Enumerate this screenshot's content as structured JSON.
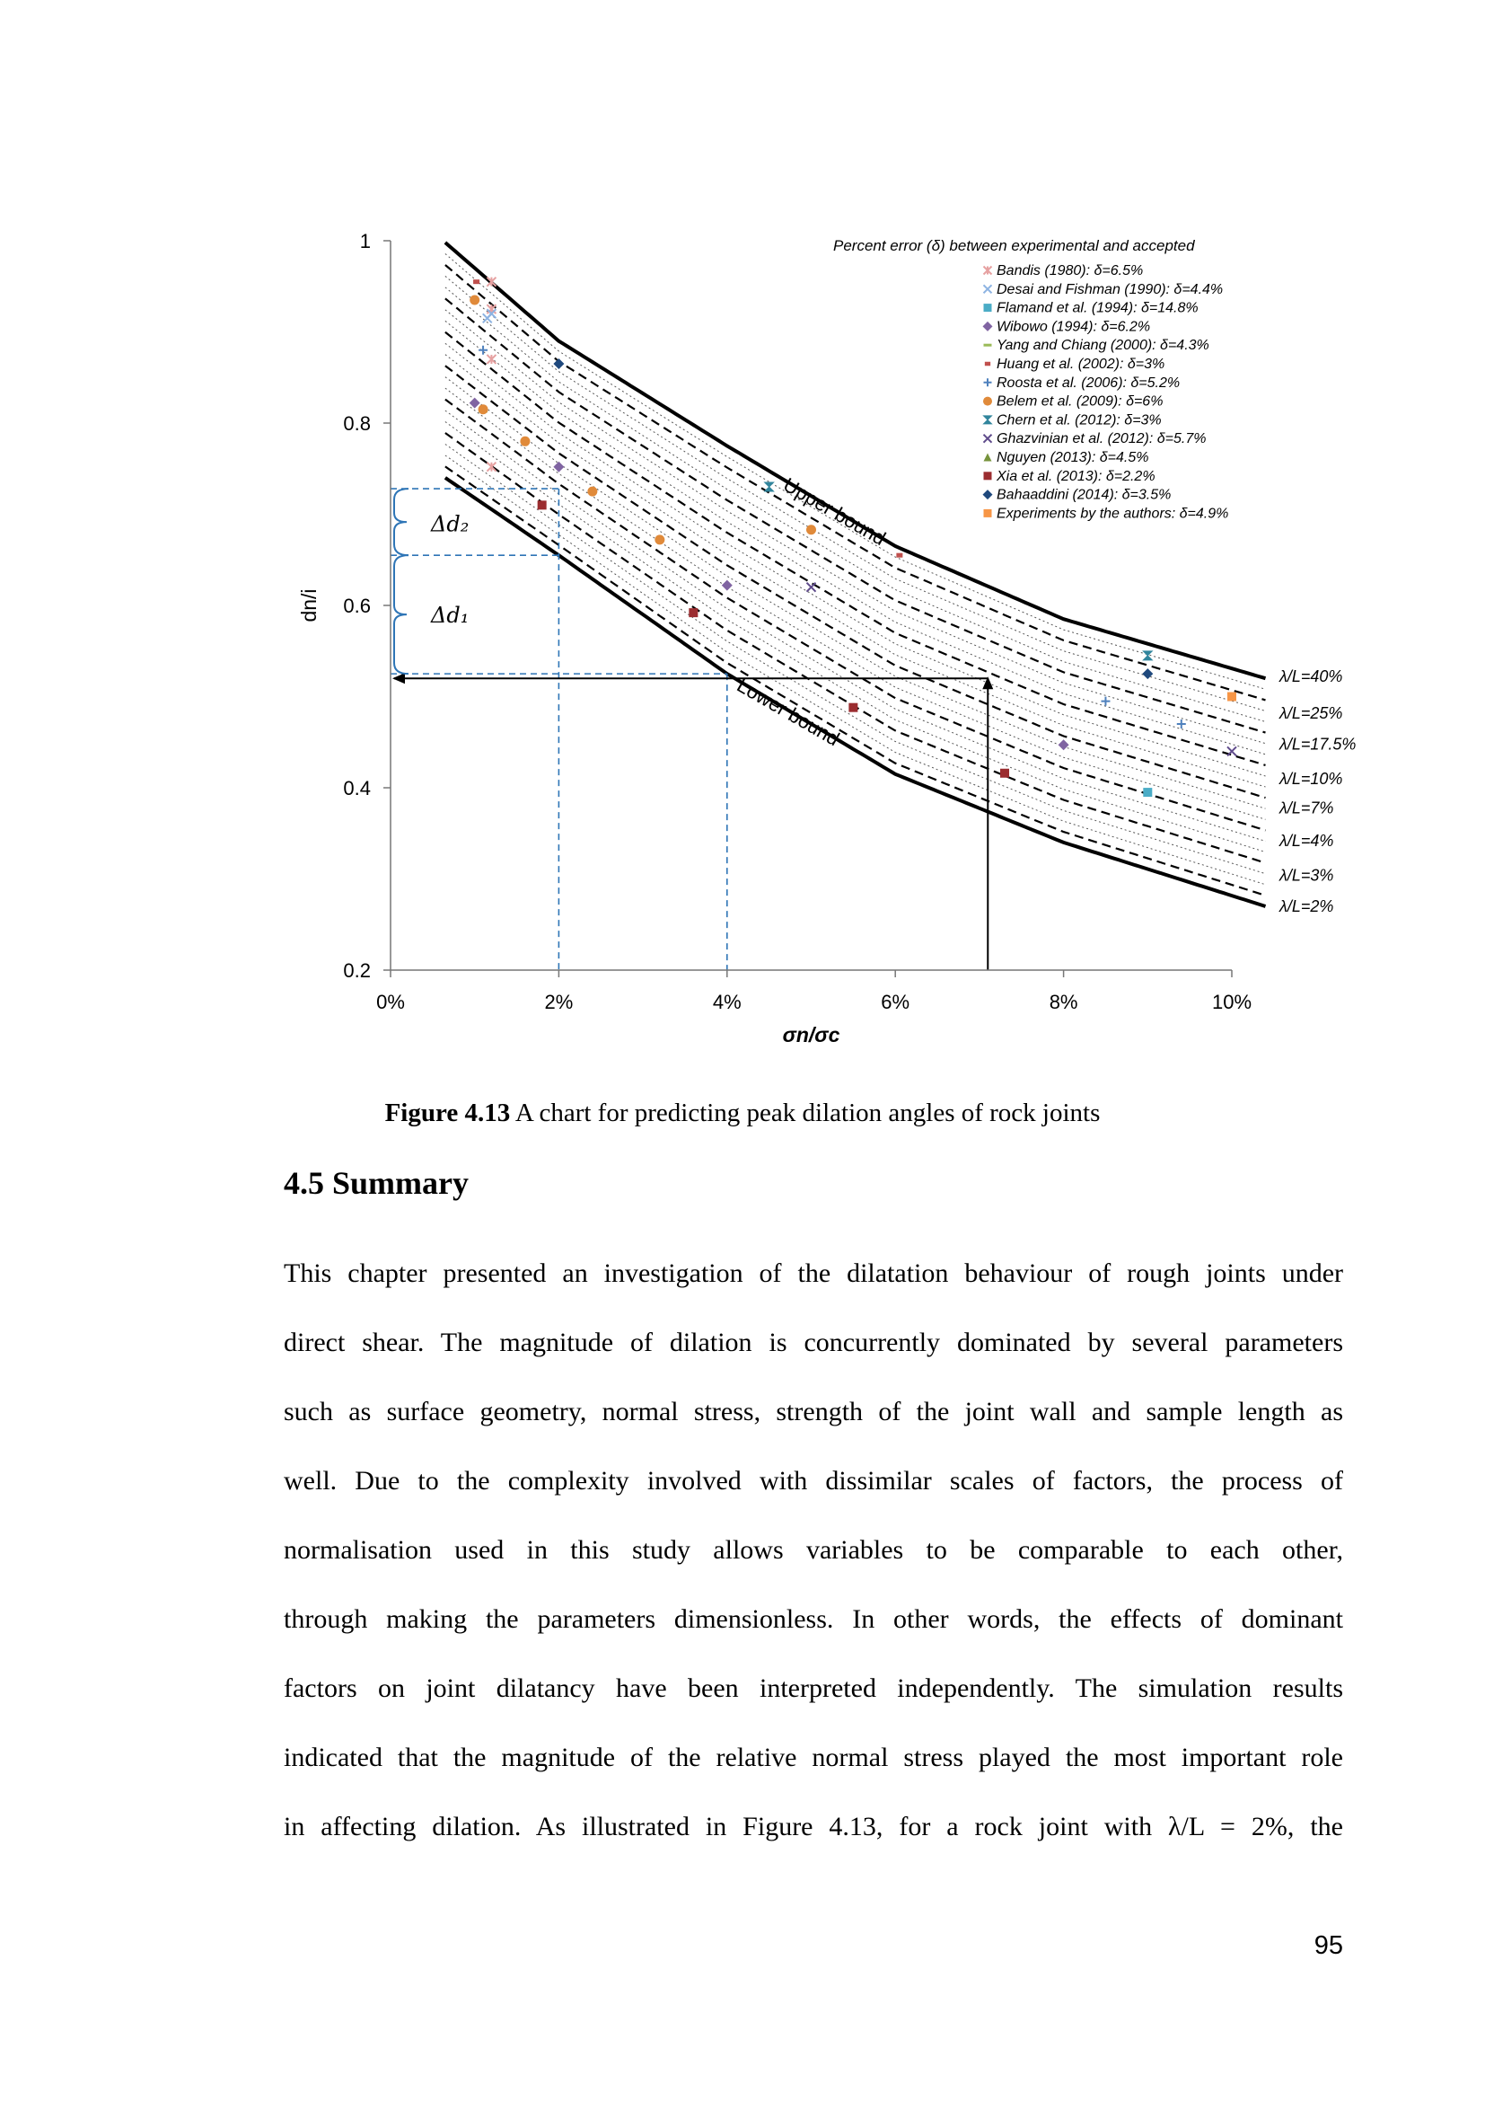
{
  "chart_data": {
    "type": "line",
    "xlabel": "σn/σc",
    "ylabel": "dn/i",
    "xlim": [
      0,
      10
    ],
    "ylim": [
      0.2,
      1.0
    ],
    "x_ticks": [
      "0%",
      "2%",
      "4%",
      "6%",
      "8%",
      "10%"
    ],
    "y_ticks": [
      "0.2",
      "0.4",
      "0.6",
      "0.8",
      "1"
    ],
    "legend_title": "Percent error (δ) between experimental and accepted",
    "legend_position": "top-right",
    "bounds": [
      {
        "name": "Upper bound",
        "x": [
          0.65,
          2,
          4,
          6,
          8,
          10.4
        ],
        "y": [
          0.998,
          0.89,
          0.775,
          0.665,
          0.585,
          0.52
        ]
      },
      {
        "name": "Lower bound",
        "x": [
          0.65,
          2,
          4,
          6,
          8,
          10.4
        ],
        "y": [
          0.74,
          0.655,
          0.525,
          0.415,
          0.34,
          0.27
        ]
      }
    ],
    "curve_labels": [
      "λ/L=40%",
      "λ/L=25%",
      "λ/L=17.5%",
      "λ/L=10%",
      "λ/L=7%",
      "λ/L=4%",
      "λ/L=3%",
      "λ/L=2%"
    ],
    "curve_label_y": [
      0.522,
      0.482,
      0.448,
      0.41,
      0.378,
      0.342,
      0.304,
      0.27
    ],
    "series": [
      {
        "name": "Bandis (1980): δ=6.5%",
        "marker": "star",
        "color": "#e6a1a1",
        "points": [
          [
            1.2,
            0.955
          ],
          [
            1.2,
            0.925
          ],
          [
            1.2,
            0.87
          ],
          [
            1.2,
            0.752
          ]
        ]
      },
      {
        "name": "Desai and Fishman (1990): δ=4.4%",
        "marker": "x",
        "color": "#8db3e2",
        "points": [
          [
            1.15,
            0.915
          ],
          [
            1.2,
            0.92
          ]
        ]
      },
      {
        "name": "Flamand et al. (1994): δ=14.8%",
        "marker": "square",
        "color": "#4bacc6",
        "points": [
          [
            9.0,
            0.395
          ]
        ]
      },
      {
        "name": "Wibowo (1994): δ=6.2%",
        "marker": "diamond",
        "color": "#8064a2",
        "points": [
          [
            1.0,
            0.822
          ],
          [
            2.0,
            0.752
          ],
          [
            4.0,
            0.622
          ],
          [
            8.0,
            0.447
          ]
        ]
      },
      {
        "name": "Yang and Chiang (2000): δ=4.3%",
        "marker": "dash",
        "color": "#9bbb59",
        "points": [
          [
            1.1,
            0.813
          ]
        ]
      },
      {
        "name": "Huang et al. (2002): δ=3%",
        "marker": "smallsquare",
        "color": "#c0504d",
        "points": [
          [
            1.02,
            0.955
          ],
          [
            6.05,
            0.655
          ]
        ]
      },
      {
        "name": "Roosta et al. (2006): δ=5.2%",
        "marker": "plus",
        "color": "#4f81bd",
        "points": [
          [
            1.1,
            0.88
          ],
          [
            8.5,
            0.495
          ],
          [
            9.4,
            0.47
          ]
        ]
      },
      {
        "name": "Belem et al. (2009): δ=6%",
        "marker": "circle",
        "color": "#e08a3a",
        "points": [
          [
            1.0,
            0.935
          ],
          [
            1.1,
            0.815
          ],
          [
            1.6,
            0.78
          ],
          [
            2.4,
            0.725
          ],
          [
            3.2,
            0.672
          ],
          [
            5.0,
            0.683
          ]
        ]
      },
      {
        "name": "Chern et al. (2012): δ=3%",
        "marker": "hourglass",
        "color": "#31859c",
        "points": [
          [
            4.5,
            0.73
          ],
          [
            9.0,
            0.545
          ]
        ]
      },
      {
        "name": "Ghazvinian et al. (2012): δ=5.7%",
        "marker": "x",
        "color": "#5f4b8b",
        "points": [
          [
            5.0,
            0.62
          ],
          [
            10.0,
            0.44
          ]
        ]
      },
      {
        "name": "Nguyen (2013): δ=4.5%",
        "marker": "triangle",
        "color": "#77933c",
        "points": []
      },
      {
        "name": "Xia et al. (2013): δ=2.2%",
        "marker": "square",
        "color": "#9b2d30",
        "points": [
          [
            1.8,
            0.71
          ],
          [
            3.6,
            0.592
          ],
          [
            5.5,
            0.488
          ],
          [
            7.3,
            0.416
          ]
        ]
      },
      {
        "name": "Bahaaddini (2014): δ=3.5%",
        "marker": "diamond",
        "color": "#1f497d",
        "points": [
          [
            2.0,
            0.865
          ],
          [
            9.0,
            0.525
          ]
        ]
      },
      {
        "name": "Experiments by the authors: δ=4.9%",
        "marker": "square",
        "color": "#f79646",
        "points": [
          [
            10.0,
            0.5
          ]
        ]
      }
    ],
    "annotations": [
      {
        "text": "Δd₂"
      },
      {
        "text": "Δd₁"
      }
    ]
  },
  "figure": {
    "caption_label": "Figure 4.13",
    "caption_text": " A chart for predicting peak dilation angles of rock joints"
  },
  "section": {
    "title": "4.5 Summary"
  },
  "body_lines": [
    "This chapter presented an investigation of the dilatation behaviour of rough joints under",
    "direct shear. The magnitude of dilation is concurrently dominated by several parameters",
    "such as surface geometry, normal stress, strength of the joint wall and sample length as",
    "well. Due to the complexity involved with dissimilar scales of factors, the process of",
    "normalisation used in this study allows variables to be comparable to each other,",
    "through making the parameters dimensionless. In other words, the effects of dominant",
    "factors on joint dilatancy have been interpreted independently. The simulation results",
    "indicated that the magnitude of the relative normal stress played the most important role",
    "in affecting dilation. As illustrated in Figure 4.13, for a rock joint with λ/L = 2%, the"
  ],
  "page_number": "95"
}
